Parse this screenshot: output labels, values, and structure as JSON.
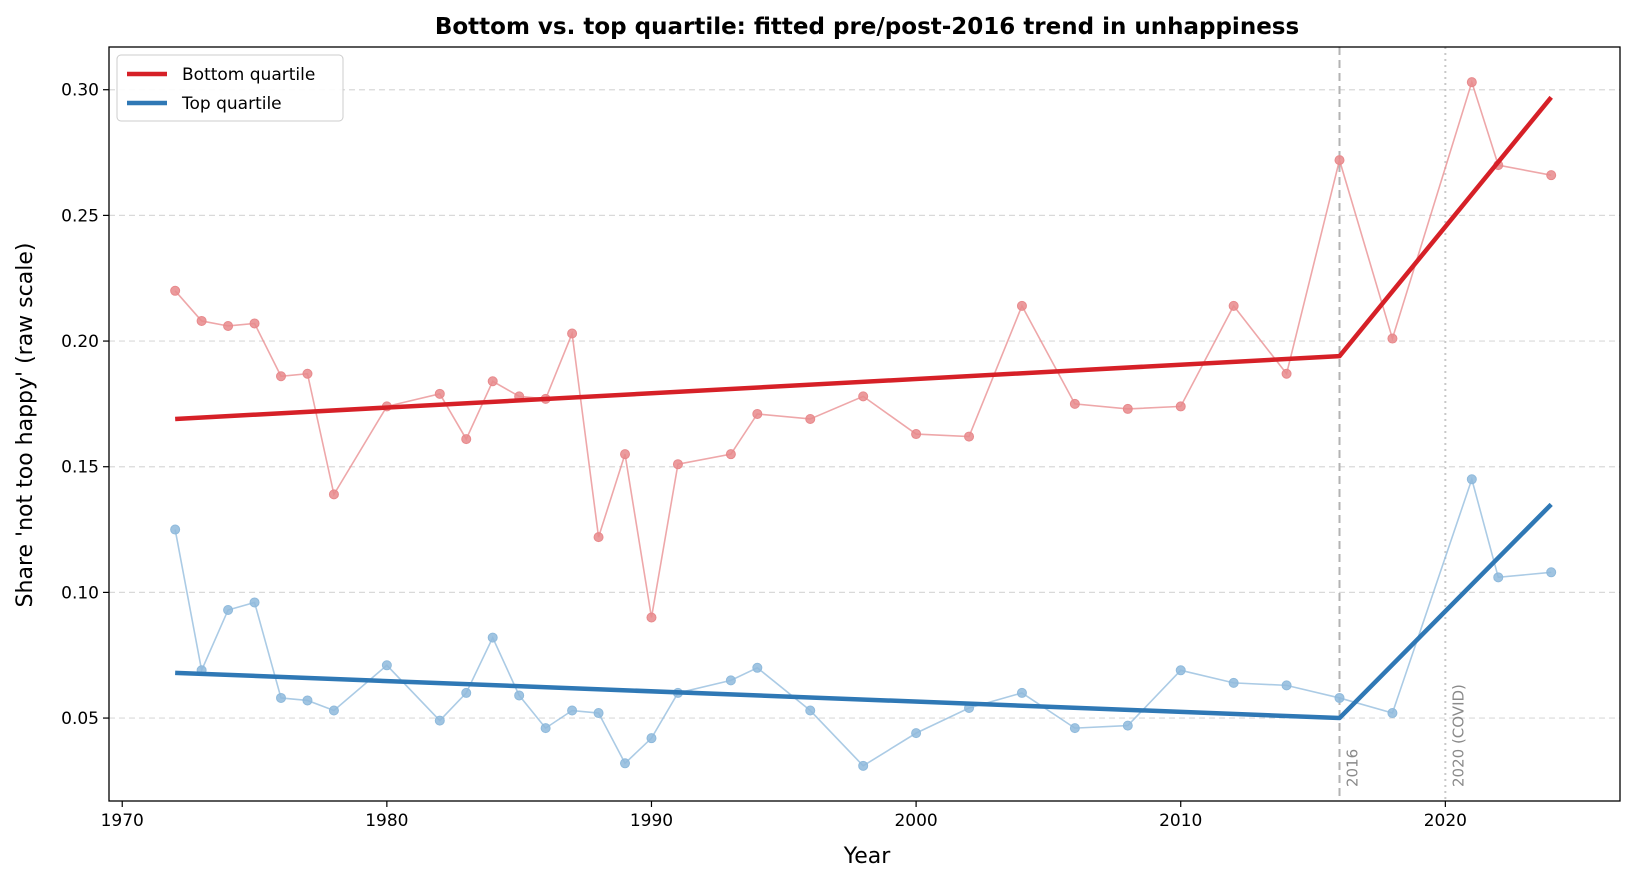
{
  "chart_data": {
    "type": "line",
    "title": "Bottom vs. top quartile: fitted pre/post-2016 trend in unhappiness",
    "xlabel": "Year",
    "ylabel": "Share 'not too happy' (raw scale)",
    "xlim": [
      1969.5,
      2026.6
    ],
    "ylim": [
      0.017,
      0.317
    ],
    "xticks": [
      1970,
      1980,
      1990,
      2000,
      2010,
      2020
    ],
    "xtick_labels": [
      "1970",
      "1980",
      "1990",
      "2000",
      "2010",
      "2020"
    ],
    "yticks": [
      0.05,
      0.1,
      0.15,
      0.2,
      0.25,
      0.3
    ],
    "ytick_labels": [
      "0.05",
      "0.10",
      "0.15",
      "0.20",
      "0.25",
      "0.30"
    ],
    "grid": "y-dashed",
    "legend_position": "top-left",
    "vlines": [
      {
        "x": 2016,
        "label": "2016",
        "style": "dashed",
        "color": "#b3b3b3"
      },
      {
        "x": 2020,
        "label": "2020 (COVID)",
        "style": "dotted",
        "color": "#c8c8c8"
      }
    ],
    "series": [
      {
        "name": "Bottom quartile",
        "color": "#d62027",
        "raw_color": "#e8898c",
        "x": [
          1972,
          1973,
          1974,
          1975,
          1976,
          1977,
          1978,
          1980,
          1982,
          1983,
          1984,
          1985,
          1986,
          1987,
          1988,
          1989,
          1990,
          1991,
          1993,
          1994,
          1996,
          1998,
          2000,
          2002,
          2004,
          2006,
          2008,
          2010,
          2012,
          2014,
          2016,
          2018,
          2021,
          2022,
          2024
        ],
        "values": [
          0.22,
          0.208,
          0.206,
          0.207,
          0.186,
          0.187,
          0.139,
          0.174,
          0.179,
          0.161,
          0.184,
          0.178,
          0.177,
          0.203,
          0.122,
          0.155,
          0.09,
          0.151,
          0.155,
          0.171,
          0.169,
          0.178,
          0.163,
          0.162,
          0.214,
          0.175,
          0.173,
          0.174,
          0.214,
          0.187,
          0.272,
          0.201,
          0.303,
          0.27,
          0.266
        ],
        "fit": {
          "x": [
            1972,
            2016,
            2024
          ],
          "values": [
            0.169,
            0.194,
            0.297
          ]
        }
      },
      {
        "name": "Top quartile",
        "color": "#2f78b5",
        "raw_color": "#8fbadc",
        "x": [
          1972,
          1973,
          1974,
          1975,
          1976,
          1977,
          1978,
          1980,
          1982,
          1983,
          1984,
          1985,
          1986,
          1987,
          1988,
          1989,
          1990,
          1991,
          1993,
          1994,
          1996,
          1998,
          2000,
          2002,
          2004,
          2006,
          2008,
          2010,
          2012,
          2014,
          2016,
          2018,
          2021,
          2022,
          2024
        ],
        "values": [
          0.125,
          0.069,
          0.093,
          0.096,
          0.058,
          0.057,
          0.053,
          0.071,
          0.049,
          0.06,
          0.082,
          0.059,
          0.046,
          0.053,
          0.052,
          0.032,
          0.042,
          0.06,
          0.065,
          0.07,
          0.053,
          0.031,
          0.044,
          0.054,
          0.06,
          0.046,
          0.047,
          0.069,
          0.064,
          0.063,
          0.058,
          0.052,
          0.145,
          0.106,
          0.108
        ],
        "fit": {
          "x": [
            1972,
            2016,
            2024
          ],
          "values": [
            0.068,
            0.05,
            0.135
          ]
        }
      }
    ]
  }
}
